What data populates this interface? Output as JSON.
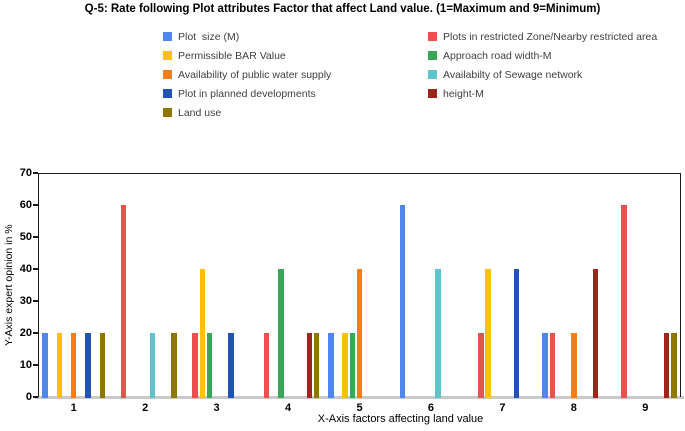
{
  "title": "Q-5: Rate following Plot attributes Factor that affect Land value. (1=Maximum and 9=Minimum)",
  "chart_data": {
    "type": "bar",
    "categories": [
      "1",
      "2",
      "3",
      "4",
      "5",
      "6",
      "7",
      "8",
      "9"
    ],
    "series": [
      {
        "name": "Plot  size (M)",
        "color": "#4e86ec",
        "values": [
          20,
          0,
          0,
          0,
          20,
          60,
          0,
          20,
          0
        ]
      },
      {
        "name": "Plots in restricted Zone/Nearby restricted area",
        "color": "#e8524d",
        "values": [
          0,
          60,
          20,
          20,
          0,
          0,
          20,
          20,
          60
        ]
      },
      {
        "name": "Permissible BAR Value",
        "color": "#ffc007",
        "values": [
          20,
          0,
          40,
          0,
          20,
          0,
          40,
          0,
          0
        ]
      },
      {
        "name": "Approach road width-M",
        "color": "#38a858",
        "values": [
          0,
          0,
          20,
          40,
          20,
          0,
          0,
          0,
          0
        ]
      },
      {
        "name": "Availability of public water supply",
        "color": "#fa7d14",
        "values": [
          20,
          0,
          0,
          0,
          40,
          0,
          0,
          20,
          0
        ]
      },
      {
        "name": "Availabilty of Sewage network",
        "color": "#5bc4cc",
        "values": [
          0,
          20,
          0,
          0,
          0,
          40,
          0,
          0,
          0
        ]
      },
      {
        "name": "Plot in planned developments",
        "color": "#2153b4",
        "values": [
          20,
          0,
          20,
          0,
          0,
          0,
          40,
          0,
          0
        ]
      },
      {
        "name": "height-M",
        "color": "#9e241c",
        "values": [
          0,
          0,
          0,
          20,
          0,
          0,
          0,
          40,
          20
        ]
      },
      {
        "name": "Land use",
        "color": "#8f7600",
        "values": [
          20,
          20,
          0,
          20,
          0,
          0,
          0,
          0,
          20
        ]
      }
    ],
    "title": "Q-5: Rate following Plot attributes Factor that affect Land value. (1=Maximum and 9=Minimum)",
    "xlabel": "X-Axis factors affecting land value",
    "ylabel": "Y-Axis expert opinion in %",
    "ylim": [
      0,
      70
    ],
    "yticks": [
      0,
      10,
      20,
      30,
      40,
      50,
      60,
      70
    ],
    "grid": false,
    "legend_position": "top",
    "legend_columns": 2
  }
}
